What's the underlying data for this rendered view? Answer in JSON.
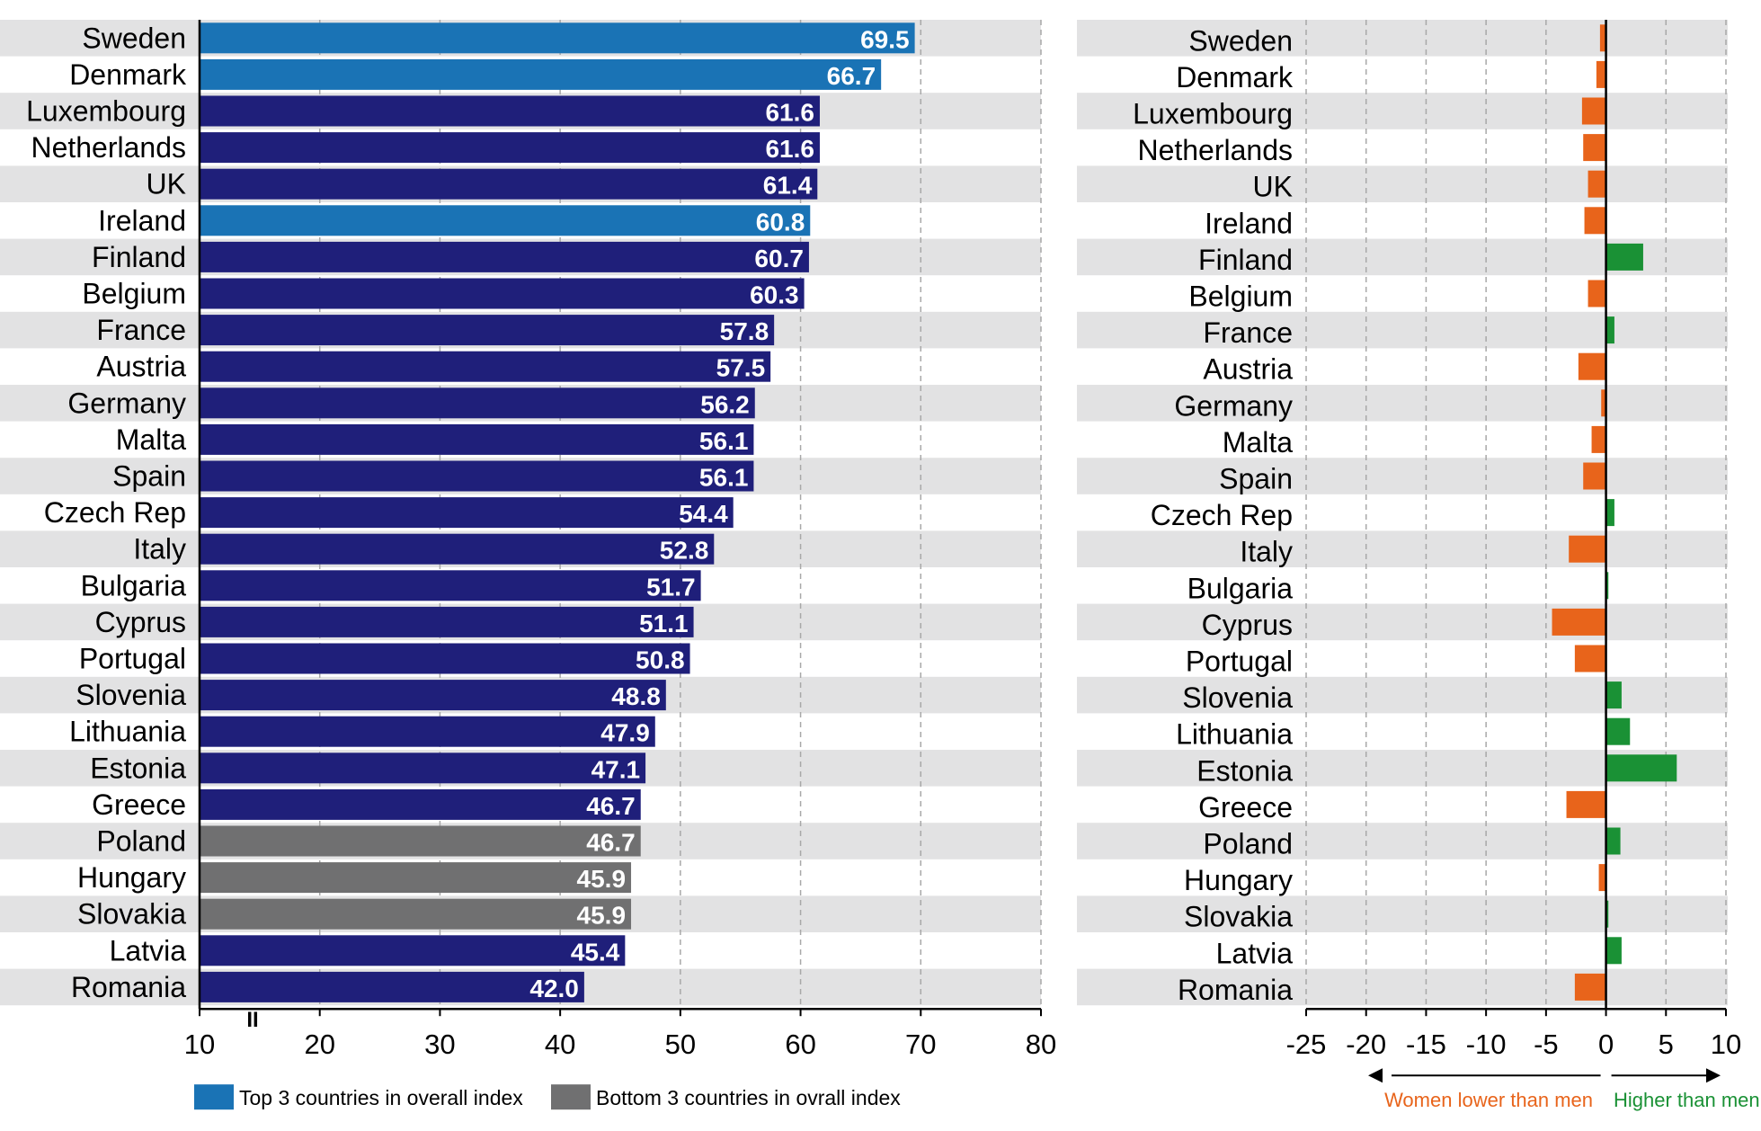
{
  "colors": {
    "navy": "#1f1f7a",
    "top3": "#1a73b5",
    "bottom3": "#707071",
    "negative": "#e8641b",
    "positive": "#1a9135",
    "stripe": "#e2e2e3"
  },
  "chart_data": [
    {
      "type": "bar",
      "orientation": "horizontal",
      "categories": [
        "Sweden",
        "Denmark",
        "Luxembourg",
        "Netherlands",
        "UK",
        "Ireland",
        "Finland",
        "Belgium",
        "France",
        "Austria",
        "Germany",
        "Malta",
        "Spain",
        "Czech Rep",
        "Italy",
        "Bulgaria",
        "Cyprus",
        "Portugal",
        "Slovenia",
        "Lithuania",
        "Estonia",
        "Greece",
        "Poland",
        "Hungary",
        "Slovakia",
        "Latvia",
        "Romania"
      ],
      "values": [
        69.5,
        66.7,
        61.6,
        61.6,
        61.4,
        60.8,
        60.7,
        60.3,
        57.8,
        57.5,
        56.2,
        56.1,
        56.1,
        54.4,
        52.8,
        51.7,
        51.1,
        50.8,
        48.8,
        47.9,
        47.1,
        46.7,
        46.7,
        45.9,
        45.9,
        45.4,
        42.0
      ],
      "value_labels": [
        "69.5",
        "66.7",
        "61.6",
        "61.6",
        "61.4",
        "60.8",
        "60.7",
        "60.3",
        "57.8",
        "57.5",
        "56.2",
        "56.1",
        "56.1",
        "54.4",
        "52.8",
        "51.7",
        "51.1",
        "50.8",
        "48.8",
        "47.9",
        "47.1",
        "46.7",
        "46.7",
        "45.9",
        "45.9",
        "45.4",
        "42.0"
      ],
      "groups": [
        "top3",
        "top3",
        "default",
        "default",
        "default",
        "top3",
        "default",
        "default",
        "default",
        "default",
        "default",
        "default",
        "default",
        "default",
        "default",
        "default",
        "default",
        "default",
        "default",
        "default",
        "default",
        "default",
        "bottom3",
        "bottom3",
        "bottom3",
        "default",
        "default"
      ],
      "xlim": [
        10,
        80
      ],
      "xticks": [
        "10",
        "20",
        "30",
        "40",
        "50",
        "60",
        "70",
        "80"
      ],
      "axis_break_mark": "II",
      "grid": "vertical dashed",
      "legend": [
        {
          "label": "Top 3 countries in overall index",
          "group": "top3"
        },
        {
          "label": "Bottom 3 countries in ovrall index",
          "group": "bottom3"
        }
      ],
      "legend_position": "bottom"
    },
    {
      "type": "bar",
      "orientation": "horizontal",
      "categories": [
        "Sweden",
        "Denmark",
        "Luxembourg",
        "Netherlands",
        "UK",
        "Ireland",
        "Finland",
        "Belgium",
        "France",
        "Austria",
        "Germany",
        "Malta",
        "Spain",
        "Czech Rep",
        "Italy",
        "Bulgaria",
        "Cyprus",
        "Portugal",
        "Slovenia",
        "Lithuania",
        "Estonia",
        "Greece",
        "Poland",
        "Hungary",
        "Slovakia",
        "Latvia",
        "Romania"
      ],
      "values": [
        -0.5,
        -0.8,
        -2.0,
        -1.9,
        -1.5,
        -1.8,
        3.1,
        -1.5,
        0.7,
        -2.3,
        -0.4,
        -1.2,
        -1.9,
        0.7,
        -3.1,
        0.2,
        -4.5,
        -2.6,
        1.3,
        2.0,
        5.9,
        -3.3,
        1.2,
        -0.6,
        0.2,
        1.3,
        -2.6
      ],
      "xlim": [
        -25,
        10
      ],
      "xticks": [
        "-25",
        "-20",
        "-15",
        "-10",
        "-5",
        "0",
        "5",
        "10"
      ],
      "grid": "vertical dashed",
      "annotations": {
        "negative_direction": "Women lower than men",
        "positive_direction": "Higher than men"
      }
    }
  ]
}
